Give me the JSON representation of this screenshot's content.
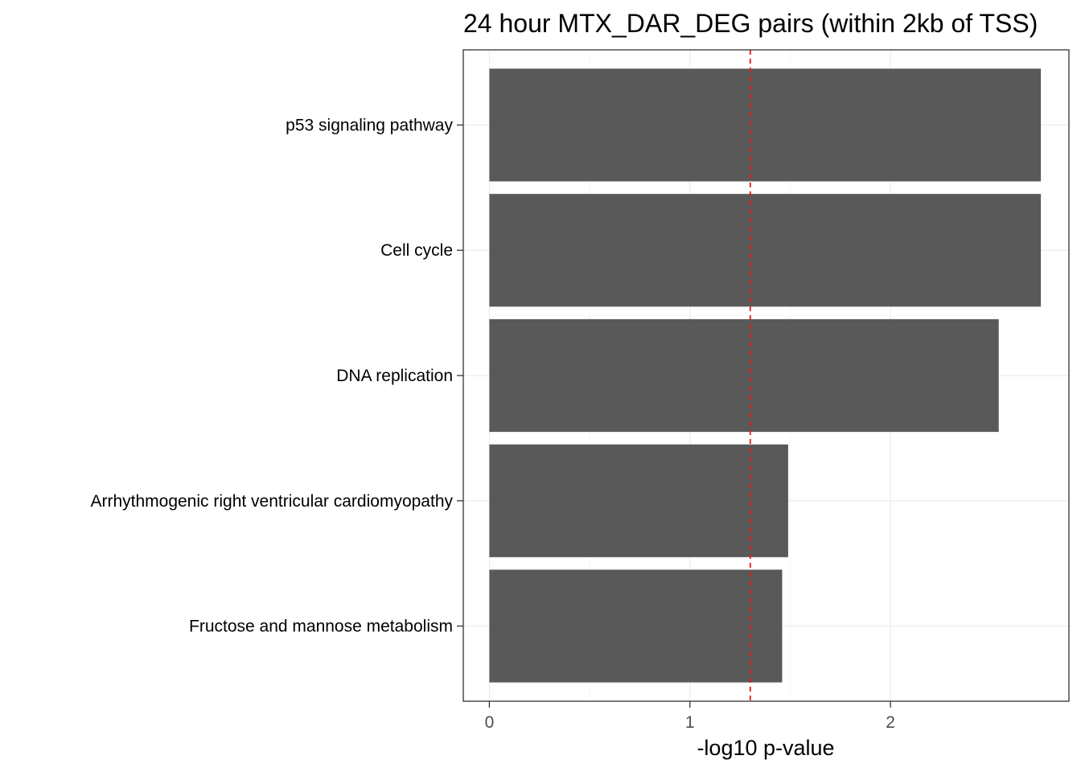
{
  "chart_data": {
    "type": "bar",
    "orientation": "horizontal",
    "title": "24 hour MTX_DAR_DEG pairs (within 2kb of TSS)",
    "xlabel": "-log10 p-value",
    "ylabel": "",
    "categories": [
      "p53 signaling pathway",
      "Cell cycle",
      "DNA replication",
      "Arrhythmogenic right ventricular cardiomyopathy",
      "Fructose and mannose metabolism"
    ],
    "values": [
      2.75,
      2.75,
      2.54,
      1.49,
      1.46
    ],
    "xlim": [
      -0.13,
      2.89
    ],
    "x_ticks": [
      0,
      1,
      2
    ],
    "x_tick_labels": [
      "0",
      "1",
      "2"
    ],
    "reference_line": {
      "x": 1.301,
      "style": "dashed",
      "color": "#e41a1c"
    },
    "grid": true,
    "legend": "none",
    "colors": {
      "bar": "#595959",
      "panel_border": "#333333",
      "grid_major": "#ebebeb",
      "grid_minor": "#f5f5f5",
      "axis_text": "#4d4d4d",
      "label_text": "#000000"
    }
  }
}
